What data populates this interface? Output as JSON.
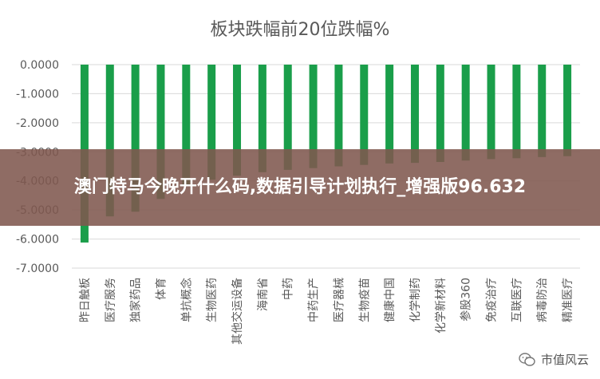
{
  "chart_data": {
    "type": "bar",
    "title": "板块跌幅前20位跌幅%",
    "categories": [
      "昨日触板",
      "医疗服务",
      "独家药品",
      "体育",
      "单抗概念",
      "生物医药",
      "其他交运设备",
      "海南省",
      "中药",
      "中药生产",
      "医疗器械",
      "生物疫苗",
      "健康中国",
      "化学制药",
      "化学新材料",
      "参股360",
      "免疫治疗",
      "互联医疗",
      "病毒防治",
      "精准医疗"
    ],
    "values": [
      -6.12,
      -5.22,
      -5.06,
      -4.62,
      -4.18,
      -3.96,
      -3.82,
      -3.7,
      -3.62,
      -3.56,
      -3.5,
      -3.45,
      -3.4,
      -3.38,
      -3.35,
      -3.3,
      -3.25,
      -3.22,
      -3.18,
      -3.15
    ],
    "ylim": [
      -7,
      0
    ],
    "yticks": [
      "0.0000",
      "-1.0000",
      "-2.0000",
      "-3.0000",
      "-4.0000",
      "-5.0000",
      "-6.0000",
      "-7.0000"
    ],
    "grid": true,
    "bar_color": "#1a9e4a"
  },
  "banner": {
    "text": "澳门特马今晚开什么码,数据引导计划执行_增强版96.632"
  },
  "watermark": {
    "text": "市值风云",
    "icon": "wechat-icon"
  }
}
